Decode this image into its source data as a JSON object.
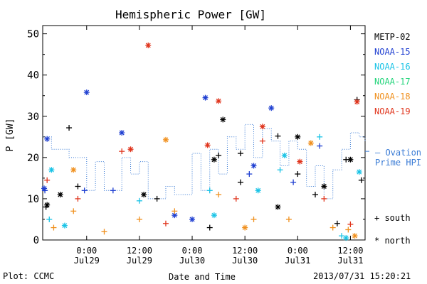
{
  "chart_data": {
    "type": "scatter",
    "title": "Hemispheric Power [GW]",
    "ylabel": "P [GW]",
    "xlabel": "Date and Time",
    "ylim": [
      0,
      52
    ],
    "yticks": [
      0,
      10,
      20,
      30,
      40,
      50
    ],
    "xlim": [
      "2013-07-28 14:00",
      "2013-07-31 15:20"
    ],
    "xticks": [
      {
        "time": "2013-07-29 00:00",
        "label1": "0:00",
        "label2": "Jul29"
      },
      {
        "time": "2013-07-29 12:00",
        "label1": "12:00",
        "label2": "Jul29"
      },
      {
        "time": "2013-07-30 00:00",
        "label1": "0:00",
        "label2": "Jul30"
      },
      {
        "time": "2013-07-30 12:00",
        "label1": "12:00",
        "label2": "Jul30"
      },
      {
        "time": "2013-07-31 00:00",
        "label1": "0:00",
        "label2": "Jul31"
      },
      {
        "time": "2013-07-31 12:00",
        "label1": "12:00",
        "label2": "Jul31"
      }
    ],
    "legend": {
      "placement": "right",
      "satellites": [
        {
          "name": "METP-02",
          "color": "#000000"
        },
        {
          "name": "NOAA-15",
          "color": "#1f3fd1"
        },
        {
          "name": "NOAA-16",
          "color": "#19c3e6"
        },
        {
          "name": "NOAA-17",
          "color": "#22d47a"
        },
        {
          "name": "NOAA-18",
          "color": "#f0901e"
        },
        {
          "name": "NOAA-19",
          "color": "#e0341c"
        }
      ],
      "ovation_label_line1": "— Ovation",
      "ovation_label_line2": "Prime HPI",
      "ovation_color": "#3a7bd5",
      "south_label": "+ south",
      "north_label": "* north"
    },
    "series": [
      {
        "name": "METP-02",
        "marker": "+",
        "hemisphere": "south",
        "points": [
          [
            "2013-07-28 14:45",
            8
          ],
          [
            "2013-07-28 20:00",
            27.2
          ],
          [
            "2013-07-28 22:00",
            13
          ],
          [
            "2013-07-29 16:00",
            10
          ],
          [
            "2013-07-30 04:00",
            3
          ],
          [
            "2013-07-30 06:00",
            20.5
          ],
          [
            "2013-07-30 11:00",
            21
          ],
          [
            "2013-07-30 11:00",
            14
          ],
          [
            "2013-07-30 19:30",
            25.2
          ],
          [
            "2013-07-31 00:00",
            16
          ],
          [
            "2013-07-31 04:00",
            11
          ],
          [
            "2013-07-31 11:00",
            19.5
          ],
          [
            "2013-07-31 13:30",
            34
          ],
          [
            "2013-07-31 14:30",
            14.5
          ],
          [
            "2013-07-31 09:00",
            4
          ]
        ]
      },
      {
        "name": "METP-02",
        "marker": "*",
        "hemisphere": "north",
        "points": [
          [
            "2013-07-28 15:00",
            8.5
          ],
          [
            "2013-07-28 18:00",
            11
          ],
          [
            "2013-07-29 13:00",
            11
          ],
          [
            "2013-07-30 05:00",
            19.5
          ],
          [
            "2013-07-30 07:00",
            29.2
          ],
          [
            "2013-07-30 19:30",
            8
          ],
          [
            "2013-07-31 00:00",
            25
          ],
          [
            "2013-07-31 06:00",
            13
          ],
          [
            "2013-07-31 12:00",
            19.5
          ]
        ]
      },
      {
        "name": "NOAA-15",
        "marker": "+",
        "hemisphere": "south",
        "points": [
          [
            "2013-07-28 14:30",
            12
          ],
          [
            "2013-07-28 23:30",
            12
          ],
          [
            "2013-07-29 06:00",
            12
          ],
          [
            "2013-07-30 13:00",
            16
          ],
          [
            "2013-07-30 23:00",
            14
          ],
          [
            "2013-07-31 05:00",
            22.8
          ]
        ]
      },
      {
        "name": "NOAA-15",
        "marker": "*",
        "hemisphere": "north",
        "points": [
          [
            "2013-07-28 14:20",
            12.5
          ],
          [
            "2013-07-28 15:00",
            24.5
          ],
          [
            "2013-07-29 00:00",
            35.8
          ],
          [
            "2013-07-29 08:00",
            26
          ],
          [
            "2013-07-30 03:00",
            34.5
          ],
          [
            "2013-07-30 18:00",
            32
          ],
          [
            "2013-07-29 20:00",
            6
          ],
          [
            "2013-07-30 00:00",
            5
          ],
          [
            "2013-07-30 14:00",
            18
          ]
        ]
      },
      {
        "name": "NOAA-16",
        "marker": "+",
        "hemisphere": "south",
        "points": [
          [
            "2013-07-28 15:30",
            5
          ],
          [
            "2013-07-29 12:00",
            9.5
          ],
          [
            "2013-07-30 04:00",
            12
          ],
          [
            "2013-07-30 20:00",
            17
          ],
          [
            "2013-07-31 05:00",
            25
          ],
          [
            "2013-07-31 10:00",
            1
          ]
        ]
      },
      {
        "name": "NOAA-16",
        "marker": "*",
        "hemisphere": "north",
        "points": [
          [
            "2013-07-28 16:00",
            17
          ],
          [
            "2013-07-28 19:00",
            3.5
          ],
          [
            "2013-07-30 05:00",
            6
          ],
          [
            "2013-07-30 15:00",
            12
          ],
          [
            "2013-07-30 21:00",
            20.5
          ],
          [
            "2013-07-31 11:00",
            0.5
          ],
          [
            "2013-07-31 14:00",
            16.5
          ]
        ]
      },
      {
        "name": "NOAA-18",
        "marker": "+",
        "hemisphere": "south",
        "points": [
          [
            "2013-07-28 16:30",
            3
          ],
          [
            "2013-07-28 21:00",
            7
          ],
          [
            "2013-07-29 04:00",
            2
          ],
          [
            "2013-07-29 12:00",
            5
          ],
          [
            "2013-07-29 20:00",
            7
          ],
          [
            "2013-07-30 06:00",
            11
          ],
          [
            "2013-07-30 14:00",
            5
          ],
          [
            "2013-07-30 22:00",
            5
          ],
          [
            "2013-07-31 08:00",
            3
          ],
          [
            "2013-07-31 11:30",
            2.5
          ]
        ]
      },
      {
        "name": "NOAA-18",
        "marker": "*",
        "hemisphere": "north",
        "points": [
          [
            "2013-07-28 21:00",
            17
          ],
          [
            "2013-07-29 18:00",
            24.3
          ],
          [
            "2013-07-30 12:00",
            3
          ],
          [
            "2013-07-31 03:00",
            23.5
          ],
          [
            "2013-07-31 13:00",
            1
          ]
        ]
      },
      {
        "name": "NOAA-19",
        "marker": "+",
        "hemisphere": "south",
        "points": [
          [
            "2013-07-28 15:00",
            14.5
          ],
          [
            "2013-07-28 22:00",
            10
          ],
          [
            "2013-07-29 08:00",
            21.5
          ],
          [
            "2013-07-29 18:00",
            4
          ],
          [
            "2013-07-30 10:00",
            10
          ],
          [
            "2013-07-30 16:00",
            24
          ],
          [
            "2013-07-31 06:00",
            10
          ],
          [
            "2013-07-31 12:00",
            3.8
          ]
        ]
      },
      {
        "name": "NOAA-19",
        "marker": "*",
        "hemisphere": "north",
        "points": [
          [
            "2013-07-29 14:00",
            47.2
          ],
          [
            "2013-07-29 10:00",
            22
          ],
          [
            "2013-07-30 06:00",
            33.7
          ],
          [
            "2013-07-30 16:00",
            27.5
          ],
          [
            "2013-07-31 13:30",
            33.5
          ],
          [
            "2013-07-30 03:30",
            23
          ],
          [
            "2013-07-31 00:30",
            19
          ]
        ]
      }
    ],
    "ovation_hpi": [
      [
        "2013-07-28 14:00",
        25
      ],
      [
        "2013-07-28 16:00",
        22
      ],
      [
        "2013-07-28 20:00",
        20
      ],
      [
        "2013-07-29 00:00",
        12
      ],
      [
        "2013-07-29 02:00",
        19
      ],
      [
        "2013-07-29 04:00",
        12
      ],
      [
        "2013-07-29 08:00",
        20
      ],
      [
        "2013-07-29 10:00",
        16
      ],
      [
        "2013-07-29 12:00",
        19
      ],
      [
        "2013-07-29 14:00",
        10
      ],
      [
        "2013-07-29 18:00",
        13
      ],
      [
        "2013-07-29 20:00",
        11
      ],
      [
        "2013-07-30 00:00",
        21
      ],
      [
        "2013-07-30 02:00",
        12
      ],
      [
        "2013-07-30 04:00",
        22
      ],
      [
        "2013-07-30 06:00",
        16
      ],
      [
        "2013-07-30 08:00",
        25
      ],
      [
        "2013-07-30 10:00",
        22
      ],
      [
        "2013-07-30 12:00",
        28
      ],
      [
        "2013-07-30 14:00",
        20
      ],
      [
        "2013-07-30 16:00",
        27
      ],
      [
        "2013-07-30 18:00",
        24
      ],
      [
        "2013-07-30 20:00",
        18
      ],
      [
        "2013-07-30 22:00",
        24
      ],
      [
        "2013-07-31 00:00",
        22
      ],
      [
        "2013-07-31 02:00",
        13
      ],
      [
        "2013-07-31 04:00",
        18
      ],
      [
        "2013-07-31 06:00",
        10
      ],
      [
        "2013-07-31 08:00",
        17
      ],
      [
        "2013-07-31 10:00",
        22
      ],
      [
        "2013-07-31 12:00",
        26
      ],
      [
        "2013-07-31 14:00",
        25
      ],
      [
        "2013-07-31 15:20",
        24
      ]
    ]
  },
  "footer": {
    "credit": "Plot: CCMC",
    "timestamp": "2013/07/31  15:20:21"
  }
}
